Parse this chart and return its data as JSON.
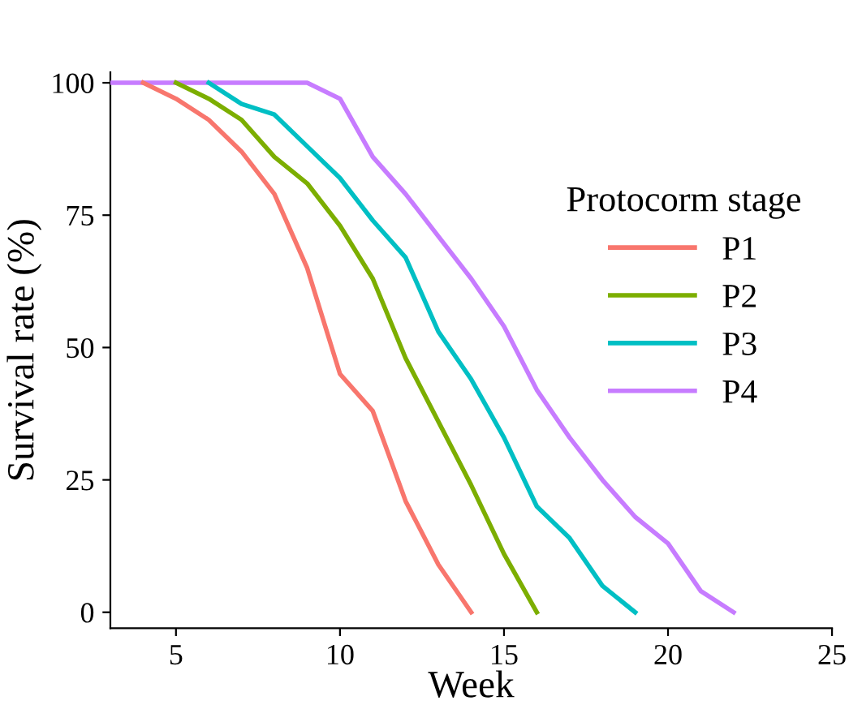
{
  "chart_data": {
    "type": "line",
    "xlabel": "Week",
    "ylabel": "Survival rate (%)",
    "legend_title": "Protocorm stage",
    "legend": "top right",
    "grid": false,
    "marker": "none",
    "line_style": "solid",
    "xlim": [
      3,
      25
    ],
    "ylim": [
      -3,
      102
    ],
    "xticks": [
      5,
      10,
      15,
      20,
      25
    ],
    "yticks": [
      0,
      25,
      50,
      75,
      100
    ],
    "series": [
      {
        "name": "P1",
        "color": "#f8766d",
        "x": [
          4,
          5,
          6,
          7,
          8,
          9,
          10,
          11,
          12,
          13,
          14
        ],
        "values": [
          100,
          97,
          93,
          87,
          79,
          65,
          45,
          38,
          21,
          9,
          0
        ]
      },
      {
        "name": "P2",
        "color": "#7cae00",
        "x": [
          5,
          6,
          7,
          8,
          9,
          10,
          11,
          12,
          13,
          14,
          15,
          16
        ],
        "values": [
          100,
          97,
          93,
          86,
          81,
          73,
          63,
          48,
          36,
          24,
          11,
          0
        ]
      },
      {
        "name": "P3",
        "color": "#00bfc4",
        "x": [
          6,
          7,
          8,
          9,
          10,
          11,
          12,
          13,
          14,
          15,
          16,
          17,
          18,
          19
        ],
        "values": [
          100,
          96,
          94,
          88,
          82,
          74,
          67,
          53,
          44,
          33,
          20,
          14,
          5,
          0
        ]
      },
      {
        "name": "P4",
        "color": "#c77cff",
        "x": [
          3,
          4,
          5,
          6,
          7,
          8,
          9,
          10,
          11,
          12,
          13,
          14,
          15,
          16,
          17,
          18,
          19,
          20,
          21,
          22
        ],
        "values": [
          100,
          100,
          100,
          100,
          100,
          100,
          100,
          97,
          86,
          79,
          71,
          63,
          54,
          42,
          33,
          25,
          18,
          13,
          4,
          0
        ]
      }
    ]
  }
}
